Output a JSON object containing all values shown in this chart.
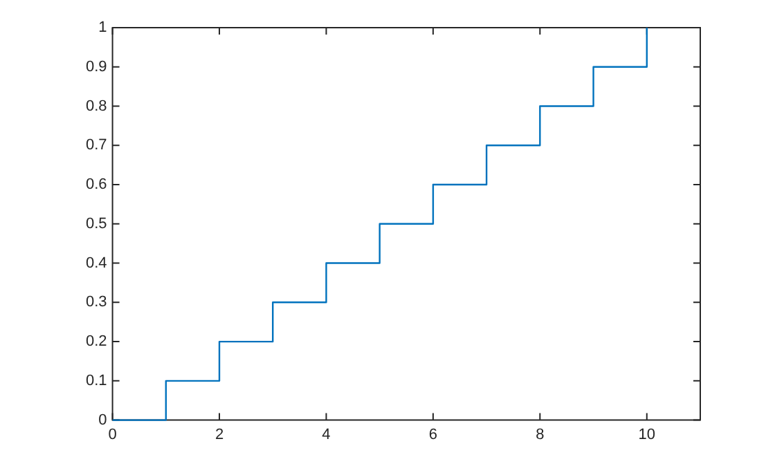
{
  "chart_data": {
    "type": "step",
    "x": [
      0,
      1,
      2,
      3,
      4,
      5,
      6,
      7,
      8,
      9,
      10
    ],
    "values": [
      0,
      0.1,
      0.2,
      0.3,
      0.4,
      0.5,
      0.6,
      0.7,
      0.8,
      0.9,
      1
    ],
    "color": "#0072bd",
    "xlim": [
      0,
      11
    ],
    "xticks": [
      0,
      2,
      4,
      6,
      8,
      10
    ],
    "ylim": [
      0,
      1
    ],
    "yticks": [
      0,
      0.1,
      0.2,
      0.3,
      0.4,
      0.5,
      0.6,
      0.7,
      0.8,
      0.9,
      1
    ],
    "grid": false,
    "legend": false
  }
}
